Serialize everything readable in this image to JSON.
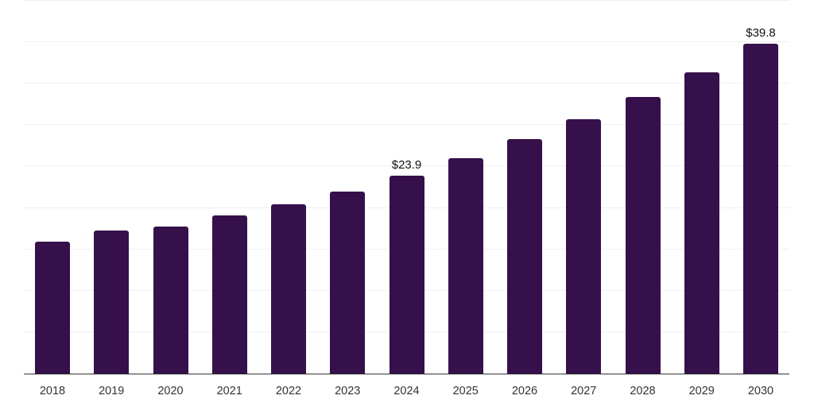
{
  "chart_data": {
    "type": "bar",
    "title": "",
    "xlabel": "",
    "ylabel": "",
    "categories": [
      "2018",
      "2019",
      "2020",
      "2021",
      "2022",
      "2023",
      "2024",
      "2025",
      "2026",
      "2027",
      "2028",
      "2029",
      "2030"
    ],
    "values": [
      15.9,
      17.3,
      17.8,
      19.1,
      20.4,
      22.0,
      23.9,
      26.0,
      28.3,
      30.7,
      33.4,
      36.4,
      39.8
    ],
    "data_labels": [
      {
        "index": 6,
        "text": "$23.9"
      },
      {
        "index": 12,
        "text": "$39.8"
      }
    ],
    "ylim": [
      0,
      45
    ],
    "grid_step": 5,
    "grid": "horizontal-only",
    "y_axis_labels_visible": false,
    "legend": "none",
    "colors": {
      "bar": "#36104A",
      "axis_line": "#333333",
      "gridline": "#f0f0f0",
      "tick_label": "#333333",
      "data_label": "#111111",
      "background": "#ffffff"
    }
  }
}
